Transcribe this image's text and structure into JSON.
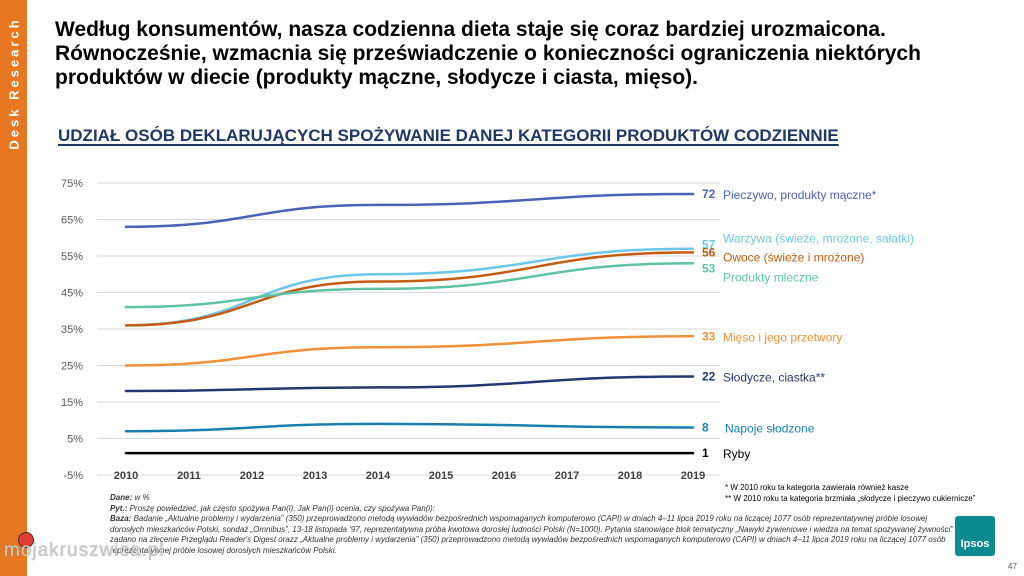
{
  "sidebar": {
    "label": "Desk Research"
  },
  "title_lines": [
    "Według konsumentów, nasza codzienna dieta staje się coraz bardziej urozmaicona.",
    "Równocześnie, wzmacnia się przeświadczenie o konieczności ograniczenia niektórych",
    "produktów w diecie (produkty mączne, słodycze i ciasta, mięso)."
  ],
  "subtitle": "UDZIAŁ OSÓB DEKLARUJĄCYCH SPOŻYWANIE DANEJ KATEGORII PRODUKTÓW CODZIENNIE",
  "chart_data": {
    "type": "line",
    "title": "UDZIAŁ OSÓB DEKLARUJĄCYCH SPOŻYWANIE DANEJ KATEGORII PRODUKTÓW CODZIENNIE",
    "x": [
      2010,
      2011,
      2012,
      2013,
      2014,
      2015,
      2016,
      2017,
      2018,
      2019
    ],
    "y_ticks": [
      -5,
      5,
      15,
      25,
      35,
      45,
      55,
      65,
      75
    ],
    "y_tick_labels": [
      "-5%",
      "5%",
      "15%",
      "25%",
      "35%",
      "45%",
      "55%",
      "65%",
      "75%"
    ],
    "ylim": [
      -5,
      75
    ],
    "grid": true,
    "series": [
      {
        "name": "Pieczywo, produkty mączne*",
        "color": "#4a63b5",
        "points": [
          [
            2010,
            63
          ],
          [
            2014,
            69
          ],
          [
            2019,
            72
          ]
        ],
        "end_label": "72"
      },
      {
        "name": "Warzywa (świeże, mrożone, sałatki)",
        "color": "#6ec6e8",
        "points": [
          [
            2010,
            36
          ],
          [
            2014,
            50
          ],
          [
            2019,
            57
          ]
        ],
        "end_label": "57"
      },
      {
        "name": "Owoce (świeże i mrożone)",
        "color": "#c55a11",
        "points": [
          [
            2010,
            36
          ],
          [
            2014,
            48
          ],
          [
            2019,
            56
          ]
        ],
        "end_label": "56"
      },
      {
        "name": "Produkty mleczne",
        "color": "#5ec2a3",
        "points": [
          [
            2010,
            41
          ],
          [
            2014,
            46
          ],
          [
            2019,
            53
          ]
        ],
        "end_label": "53"
      },
      {
        "name": "Mięso i jego przetwory",
        "color": "#f0913a",
        "points": [
          [
            2010,
            25
          ],
          [
            2014,
            30
          ],
          [
            2019,
            33
          ]
        ],
        "end_label": "33"
      },
      {
        "name": "Słodycze, ciastka**",
        "color": "#23386e",
        "points": [
          [
            2010,
            18
          ],
          [
            2014,
            19
          ],
          [
            2019,
            22
          ]
        ],
        "end_label": "22"
      },
      {
        "name": "Napoje słodzone",
        "color": "#1b7fad",
        "points": [
          [
            2010,
            7
          ],
          [
            2014,
            9
          ],
          [
            2019,
            8
          ]
        ],
        "end_label": "8"
      },
      {
        "name": "Ryby",
        "color": "#000000",
        "points": [
          [
            2010,
            1
          ],
          [
            2014,
            1
          ],
          [
            2019,
            1
          ]
        ],
        "end_label": "1"
      }
    ]
  },
  "notes": [
    "* W 2010 roku ta kategoria zawierała również kasze",
    "** W 2010 roku ta kategoria brzmiała „słodycze i pieczywo cukiernicze”"
  ],
  "footnotes": {
    "dane_label": "Dane:",
    "dane_text": "w %",
    "pyt_label": "Pyt.:",
    "pyt_text": "Proszę powiedzieć, jak często spożywa Pan(i), Jak Pan(i) ocenia, czy spożywa Pan(i):",
    "baza_label": "Baza:",
    "baza_text": "Badanie „Aktualne problemy i wydarzenia” (350) przeprowadzono metodą wywiadów bezpośrednich wspomaganych komputerowo (CAPI) w dniach 4–11 lipca 2019 roku na liczącej 1077 osób reprezentatywnej próbie losowej dorosłych mieszkańców Polski, sondaż „Omnibus”, 13-18 listopada '97, reprezentatywna próba kwotowa dorosłej ludności Polski (N=1000). Pytania stanowiące blok tematyczny „Nawyki żywieniowe i wiedza na temat spożywanej żywności” zadano na zlecenie Przeglądu Reader's Digest orazz „Aktualne problemy i wydarzenia” (350) przeprowadzono metodą wywiadów bezpośrednich wspomaganych komputerowo (CAPI) w dniach 4–11 lipca 2019 roku na liczącej 1077 osób reprezentatywnej próbie losowej dorosłych mieszkańców Polski."
  },
  "logo": {
    "text": "Ipsos"
  },
  "page_number": "47",
  "watermark": "mojakruszwica.pl"
}
